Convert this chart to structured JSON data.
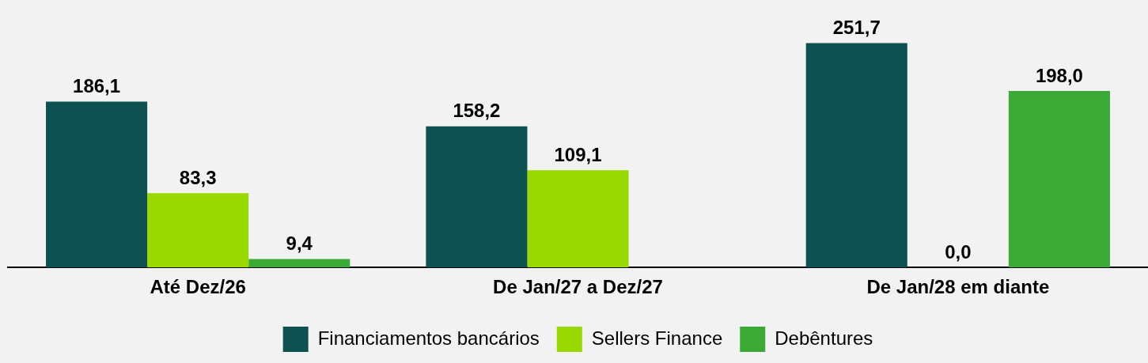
{
  "chart_data": {
    "type": "bar",
    "categories": [
      "Até Dez/26",
      "De Jan/27 a Dez/27",
      "De Jan/28 em diante"
    ],
    "series": [
      {
        "name": "Financiamentos bancários",
        "color": "#0d5250",
        "values": [
          186.1,
          158.2,
          251.7
        ],
        "value_labels": [
          "186,1",
          "158,2",
          "251,7"
        ]
      },
      {
        "name": "Sellers Finance",
        "color": "#99d900",
        "values": [
          83.3,
          109.1,
          0.0
        ],
        "value_labels": [
          "83,3",
          "109,1",
          "0,0"
        ]
      },
      {
        "name": "Debêntures",
        "color": "#3caa36",
        "values": [
          9.4,
          null,
          198.0
        ],
        "value_labels": [
          "9,4",
          null,
          "198,0"
        ]
      }
    ],
    "legend": "bottom",
    "tick_labels": "x"
  }
}
